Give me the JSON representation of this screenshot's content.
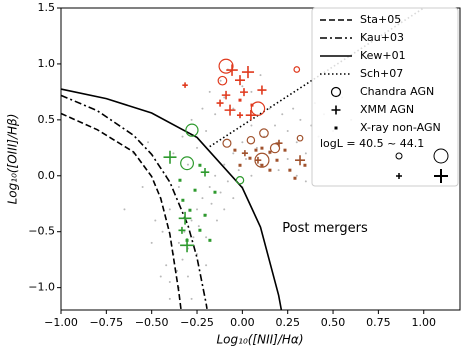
{
  "chart_data": {
    "type": "scatter",
    "xlabel": "Log₁₀([NII]/Hα)",
    "ylabel": "Log₁₀([OIII]/Hβ)",
    "xlim": [
      -1.0,
      1.2
    ],
    "ylim": [
      -1.2,
      1.5
    ],
    "xticks": [
      {
        "value": -1.0,
        "label": "−1.00"
      },
      {
        "value": -0.75,
        "label": "−0.75"
      },
      {
        "value": -0.5,
        "label": "−0.50"
      },
      {
        "value": -0.25,
        "label": "−0.25"
      },
      {
        "value": 0,
        "label": "0.00"
      },
      0.25,
      {
        "value": 0.5,
        "label": "0.50"
      },
      0.75,
      {
        "value": 1,
        "label": "1.00"
      }
    ],
    "yticks": [
      {
        "value": -1,
        "label": "−1.0"
      },
      {
        "value": -0.5,
        "label": "−0.5"
      },
      {
        "value": 0,
        "label": "0.0"
      },
      0.5,
      {
        "value": 1,
        "label": "1.0"
      },
      1.5
    ],
    "annotations": [
      {
        "text": "Post mergers",
        "x": 0.22,
        "y": -0.47
      }
    ],
    "legend_note": "logL = 40.5 ~ 44.1",
    "legend_position": "upper right",
    "background": {
      "color": "#8a8a8a",
      "x": [
        -0.45,
        -0.42,
        -0.4,
        -0.38,
        -0.36,
        -0.35,
        -0.33,
        -0.32,
        -0.3,
        -0.3,
        -0.28,
        -0.27,
        -0.25,
        -0.25,
        -0.24,
        -0.22,
        -0.2,
        -0.2,
        -0.18,
        -0.17,
        -0.15,
        -0.14,
        -0.12,
        -0.1,
        -0.1,
        -0.08,
        -0.05,
        -0.05,
        -0.02,
        0.0,
        0.0,
        0.02,
        0.05,
        0.05,
        0.08,
        0.1,
        0.1,
        0.12,
        0.15,
        0.15,
        0.18,
        0.2,
        0.2,
        0.22,
        0.25,
        0.25,
        0.28,
        0.3,
        0.32,
        0.35,
        0.38,
        0.4,
        0.42,
        0.45,
        0.5,
        -0.5,
        -0.48,
        -0.45,
        -0.42,
        -0.4,
        -0.38,
        -0.35,
        -0.33,
        -0.3,
        -0.28,
        -0.25,
        -0.22,
        -0.2,
        -0.18,
        -0.15,
        -0.12,
        -0.1,
        -0.08,
        -0.05,
        0.0,
        0.05,
        0.1,
        -0.55,
        -0.6,
        -0.52,
        -0.65,
        -0.35,
        -0.28,
        -0.4,
        -0.2,
        0.3,
        0.35,
        0.6,
        0.55,
        -0.44
      ],
      "y": [
        -0.9,
        -0.8,
        -0.95,
        -0.7,
        -0.85,
        -0.6,
        -0.75,
        -0.5,
        -0.65,
        -0.9,
        -0.4,
        -0.55,
        -0.3,
        -0.7,
        -0.45,
        -0.2,
        -0.35,
        -0.55,
        -0.1,
        -0.25,
        0.0,
        -0.4,
        -0.15,
        0.1,
        -0.3,
        -0.05,
        0.2,
        -0.2,
        0.05,
        0.3,
        -0.1,
        0.15,
        0.45,
        0.0,
        0.25,
        0.55,
        0.1,
        0.35,
        0.2,
        0.6,
        0.45,
        0.3,
        0.05,
        0.55,
        0.4,
        0.15,
        0.6,
        0.3,
        0.5,
        0.2,
        0.45,
        0.65,
        0.35,
        0.55,
        0.4,
        -0.6,
        -0.4,
        -0.2,
        0.0,
        -0.3,
        0.2,
        -0.1,
        0.35,
        0.1,
        0.5,
        0.25,
        0.6,
        0.4,
        0.75,
        0.55,
        0.85,
        0.7,
        0.95,
        0.6,
        0.8,
        0.75,
        0.9,
        -0.1,
        0.2,
        0.3,
        -0.3,
        -1.0,
        -1.1,
        -1.1,
        -0.8,
        0.0,
        -0.05,
        0.5,
        0.7,
        -0.5
      ]
    },
    "curves": [
      {
        "name": "Sta+05",
        "dash": "dashed",
        "color": "#000000",
        "x": [
          -1.0,
          -0.8,
          -0.6,
          -0.5,
          -0.45,
          -0.4,
          -0.35,
          -0.338
        ],
        "y": [
          0.557,
          0.412,
          0.213,
          -0.007,
          -0.203,
          -0.519,
          -1.042,
          -1.2
        ]
      },
      {
        "name": "Kau+03",
        "dash": "dashdot",
        "color": "#000000",
        "x": [
          -1.0,
          -0.8,
          -0.6,
          -0.5,
          -0.4,
          -0.3,
          -0.25,
          -0.2,
          -0.195
        ],
        "y": [
          0.719,
          0.582,
          0.362,
          0.191,
          -0.056,
          -0.443,
          -0.733,
          -1.14,
          -1.19
        ]
      },
      {
        "name": "Kew+01",
        "dash": "solid",
        "color": "#000000",
        "x": [
          -1.0,
          -0.75,
          -0.5,
          -0.25,
          0.0,
          0.1,
          0.2,
          0.215
        ],
        "y": [
          0.775,
          0.69,
          0.561,
          0.343,
          -0.108,
          -0.459,
          -1.069,
          -1.2
        ]
      },
      {
        "name": "Sch+07",
        "dash": "dotted",
        "color": "#000000",
        "x": [
          -0.18,
          1.0
        ],
        "y": [
          0.261,
          1.5
        ]
      }
    ],
    "marker_legend": [
      {
        "name": "Chandra AGN",
        "marker": "circle"
      },
      {
        "name": "XMM AGN",
        "marker": "plus"
      },
      {
        "name": "X-ray non-AGN",
        "marker": "square"
      }
    ],
    "series": [
      {
        "marker": "circle",
        "color": "#e03a1e",
        "x": [
          -0.09,
          -0.11,
          0.086,
          0.3
        ],
        "y": [
          0.98,
          0.85,
          0.6,
          0.95
        ],
        "sizes": [
          43.8,
          42.0,
          43.6,
          41.0
        ]
      },
      {
        "marker": "plus",
        "color": "#e03a1e",
        "x": [
          -0.316,
          -0.057,
          -0.013,
          0.031,
          -0.09,
          -0.123,
          -0.068,
          -0.013,
          0.047,
          0.009,
          0.108
        ],
        "y": [
          0.81,
          0.945,
          0.855,
          0.927,
          0.721,
          0.65,
          0.587,
          0.542,
          0.542,
          0.748,
          0.766
        ],
        "sizes": [
          41.0,
          43.0,
          42.5,
          43.2,
          42.0,
          41.5,
          42.8,
          41.2,
          42.6,
          41.8,
          42.2
        ]
      },
      {
        "marker": "square",
        "color": "#e03a1e",
        "x": [
          -0.013,
          0.053
        ],
        "y": [
          0.676,
          0.632
        ]
      },
      {
        "marker": "circle",
        "color": "#a0522d",
        "x": [
          -0.085,
          0.119,
          0.18,
          0.047,
          0.108,
          0.318
        ],
        "y": [
          0.291,
          0.381,
          0.247,
          0.318,
          0.139,
          0.336
        ],
        "sizes": [
          41.8,
          42.0,
          42.2,
          41.6,
          43.8,
          41.0
        ]
      },
      {
        "marker": "plus",
        "color": "#a0522d",
        "x": [
          0.202,
          0.318,
          0.014,
          0.086
        ],
        "y": [
          0.291,
          0.139,
          0.202,
          0.139
        ],
        "sizes": [
          41.5,
          42.5,
          41.2,
          41.4
        ]
      },
      {
        "marker": "square",
        "color": "#a0522d",
        "x": [
          0.075,
          0.108,
          0.152,
          0.042,
          0.108,
          0.191,
          0.235,
          0.262,
          0.29,
          0.345,
          0.152,
          -0.013,
          -0.041
        ],
        "y": [
          0.229,
          0.247,
          0.211,
          0.157,
          0.094,
          0.139,
          0.229,
          0.05,
          -0.022,
          0.094,
          0.05,
          0.094,
          0.229
        ]
      },
      {
        "marker": "circle",
        "color": "#2e9a2e",
        "x": [
          -0.278,
          -0.305,
          -0.013
        ],
        "y": [
          0.408,
          0.112,
          -0.04
        ],
        "sizes": [
          43.2,
          43.4,
          41.6
        ]
      },
      {
        "marker": "plus",
        "color": "#2e9a2e",
        "x": [
          -0.399,
          -0.206,
          -0.316,
          -0.305,
          -0.333
        ],
        "y": [
          0.166,
          0.032,
          -0.38,
          -0.622,
          -0.488
        ],
        "sizes": [
          43.5,
          42.0,
          43.4,
          43.8,
          41.5
        ]
      },
      {
        "marker": "square",
        "color": "#2e9a2e",
        "x": [
          -0.344,
          -0.328,
          -0.289,
          -0.234,
          -0.206,
          -0.261,
          -0.151,
          -0.179,
          -0.305,
          -0.234
        ],
        "y": [
          -0.04,
          -0.219,
          -0.308,
          -0.487,
          -0.353,
          -0.129,
          -0.147,
          -0.577,
          -0.577,
          0.094
        ]
      }
    ]
  }
}
